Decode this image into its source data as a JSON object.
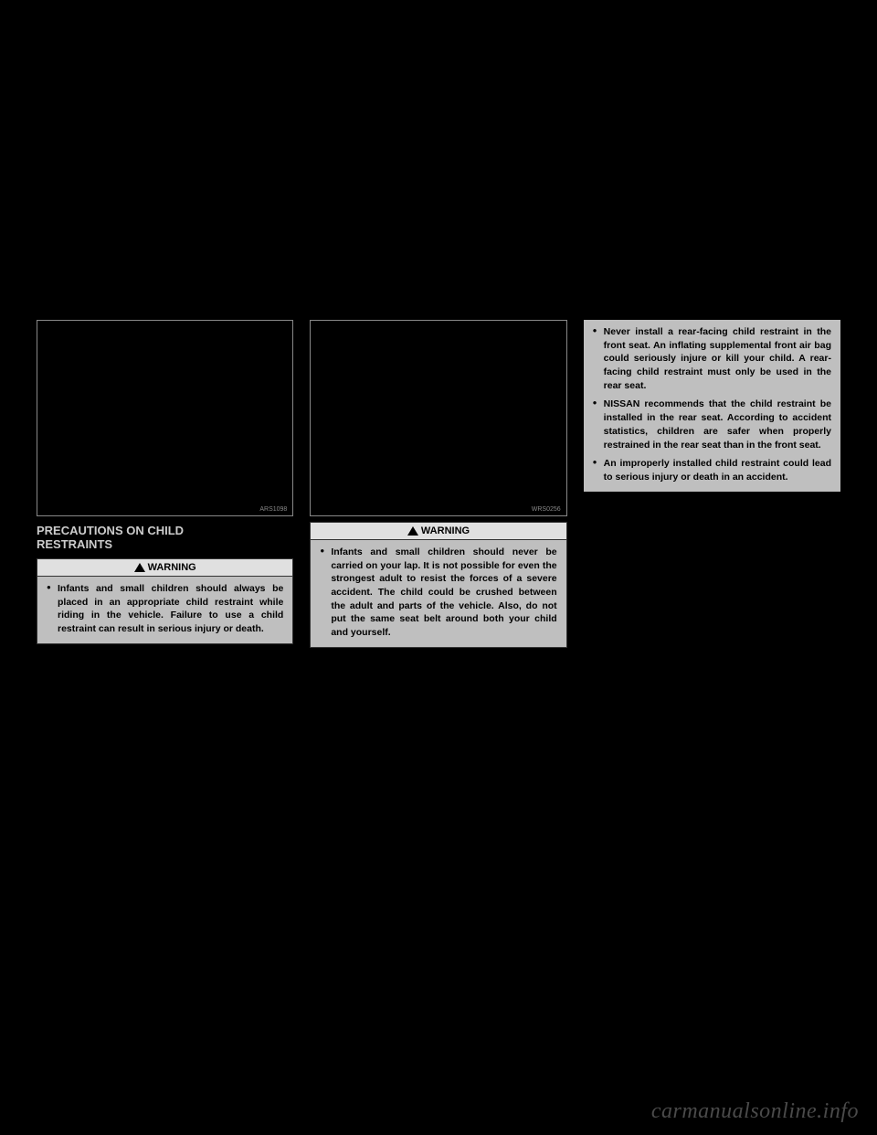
{
  "columns": {
    "left": {
      "image_code": "ARS1098",
      "section_title": "PRECAUTIONS ON CHILD\nRESTRAINTS",
      "warning_label": "WARNING",
      "warnings": [
        "Infants and small children should always be placed in an appropriate child restraint while riding in the vehicle. Failure to use a child restraint can result in serious injury or death."
      ]
    },
    "middle": {
      "image_code": "WRS0256",
      "warning_label": "WARNING",
      "warnings": [
        "Infants and small children should never be carried on your lap. It is not possible for even the strongest adult to resist the forces of a severe accident. The child could be crushed between the adult and parts of the vehicle. Also, do not put the same seat belt around both your child and yourself."
      ]
    },
    "right": {
      "warnings": [
        "Never install a rear-facing child restraint in the front seat. An inflating supplemental front air bag could seriously injure or kill your child. A rear-facing child restraint must only be used in the rear seat.",
        "NISSAN recommends that the child restraint be installed in the rear seat. According to accident statistics, children are safer when properly restrained in the rear seat than in the front seat.",
        "An improperly installed child restraint could lead to serious injury or death in an accident."
      ]
    }
  },
  "watermark": "carmanualsonline.info",
  "colors": {
    "page_bg": "#000000",
    "box_bg": "#bfbfbf",
    "header_bg": "#e0e0e0",
    "border": "#888888",
    "text_dark": "#000000",
    "text_light": "#cccccc",
    "watermark": "#4a4a4a"
  }
}
